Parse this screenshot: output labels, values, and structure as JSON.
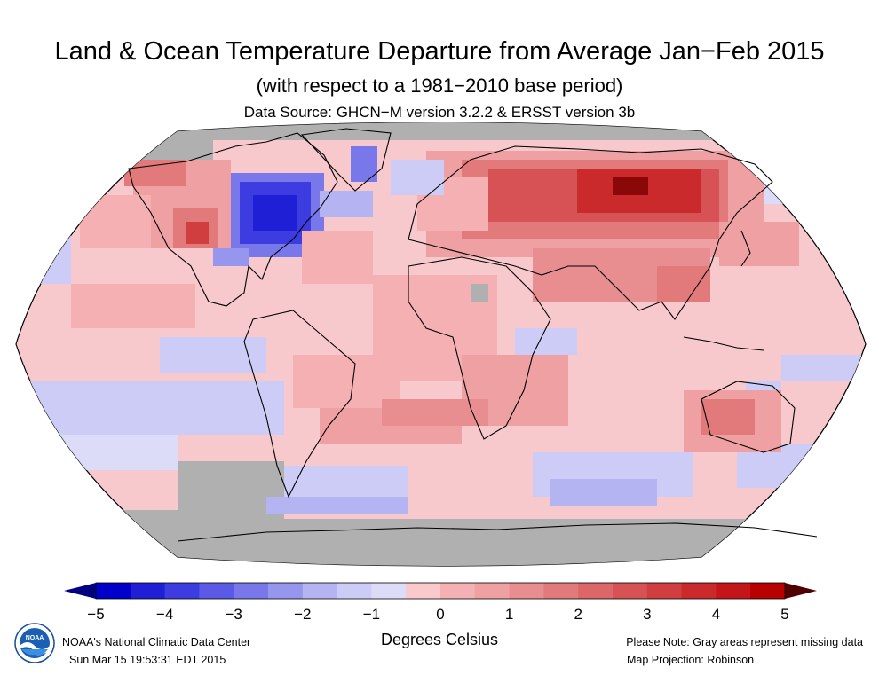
{
  "header": {
    "title": "Land & Ocean Temperature Departure from Average Jan−Feb 2015",
    "subtitle": "(with respect to a 1981−2010 base period)",
    "source": "Data Source: GHCN−M version 3.2.2 & ERSST version 3b"
  },
  "map": {
    "projection": "Robinson",
    "ocean_base_color": "#f8c9cc",
    "missing_color": "#b0b0b0",
    "coastline_color": "#000000"
  },
  "legend": {
    "ticks": [
      "−5",
      "−4",
      "−3",
      "−2",
      "−1",
      "0",
      "1",
      "2",
      "3",
      "4",
      "5"
    ],
    "unit_label": "Degrees Celsius",
    "colors": [
      "#0000c8",
      "#1f1fd6",
      "#3c3ce0",
      "#5a5ae6",
      "#7878ea",
      "#9696ee",
      "#b4b4f2",
      "#ccccf6",
      "#dcdcf8",
      "#f9c9cb",
      "#f4b0b3",
      "#eea0a2",
      "#e88e90",
      "#e27a7c",
      "#dc6668",
      "#d65254",
      "#d03e40",
      "#ca2a2c",
      "#c41618",
      "#b80000"
    ],
    "low_extreme_color": "#000080",
    "high_extreme_color": "#500000"
  },
  "footer": {
    "org": "NOAA's National Climatic Data Center",
    "timestamp": "Sun Mar 15 19:53:31 EDT 2015",
    "note": "Please Note: Gray areas represent missing data",
    "projection_note": "Map Projection: Robinson",
    "logo_text": "NOAA"
  }
}
